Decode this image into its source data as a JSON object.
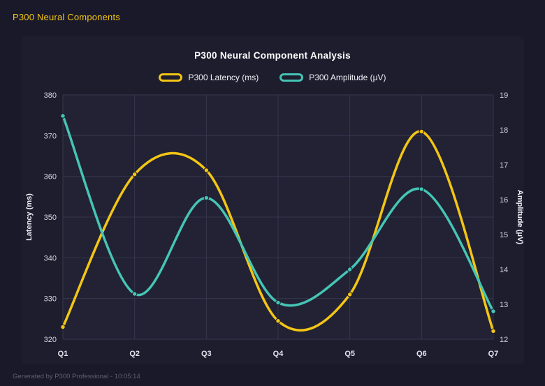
{
  "header": {
    "title": "P300 Neural Components"
  },
  "footer": {
    "text": "Generated by P300 Professional - 10:05:14"
  },
  "colors": {
    "background": "#19192a",
    "card": "#1d1d2e",
    "plot_background": "#222234",
    "grid": "#36364e",
    "accent_yellow": "#f3c614",
    "accent_teal": "#45c5b5"
  },
  "chart_data": {
    "type": "line",
    "smooth": true,
    "title": "P300 Neural Component Analysis",
    "categories": [
      "Q1",
      "Q2",
      "Q3",
      "Q4",
      "Q5",
      "Q6",
      "Q7"
    ],
    "series": [
      {
        "name": "P300 Latency (ms)",
        "axis": "left",
        "color": "#f3c614",
        "values": [
          323,
          360.5,
          361.5,
          324.5,
          331,
          371,
          322
        ]
      },
      {
        "name": "P300 Amplitude (μV)",
        "axis": "right",
        "color": "#45c5b5",
        "values": [
          18.4,
          13.3,
          16.05,
          13.05,
          14.0,
          16.3,
          12.8
        ]
      }
    ],
    "left_axis": {
      "label": "Latency (ms)",
      "min": 320,
      "max": 380,
      "tick_step": 10
    },
    "right_axis": {
      "label": "Amplitude (μV)",
      "min": 12,
      "max": 19,
      "tick_step": 1
    },
    "grid": true,
    "legend_position": "top"
  }
}
